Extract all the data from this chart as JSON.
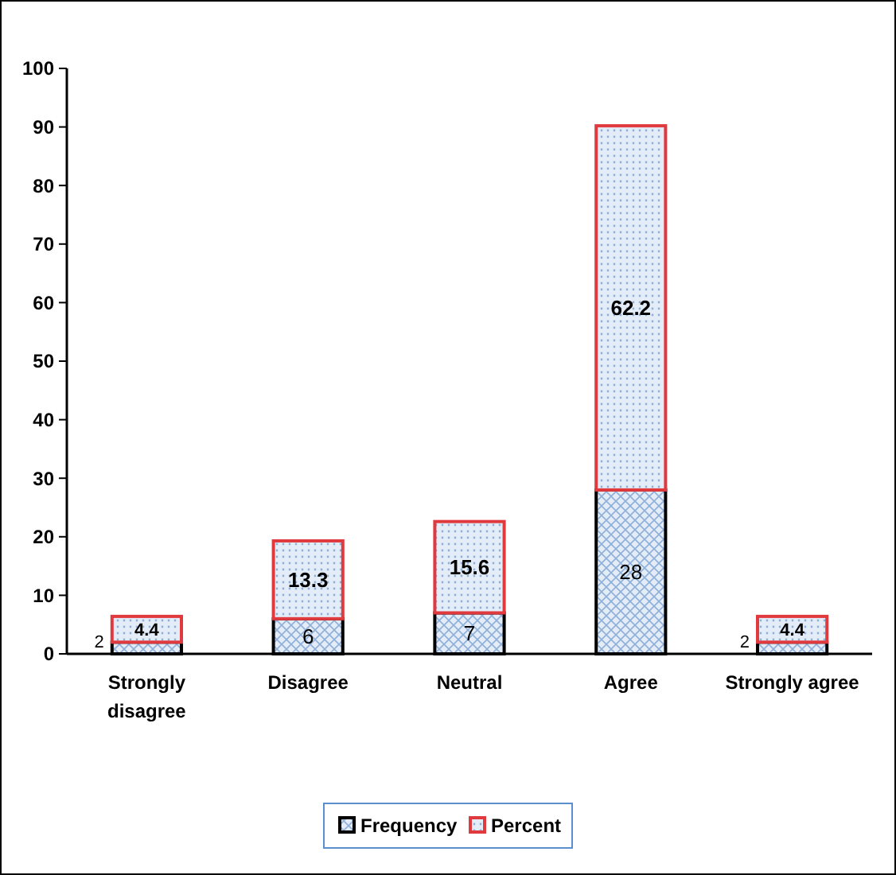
{
  "chart_data": {
    "type": "bar",
    "stacked": true,
    "categories": [
      "Strongly disagree",
      "Disagree",
      "Neutral",
      "Agree",
      "Strongly agree"
    ],
    "series": [
      {
        "name": "Frequency",
        "color": "#000000",
        "values": [
          2,
          6,
          7,
          28,
          2
        ]
      },
      {
        "name": "Percent",
        "color": "#e0393e",
        "values": [
          4.4,
          13.3,
          15.6,
          62.2,
          4.4
        ]
      }
    ],
    "ylim": [
      0,
      100
    ],
    "yticks": [
      0,
      10,
      20,
      30,
      40,
      50,
      60,
      70,
      80,
      90,
      100
    ],
    "grid": false,
    "legend": "bottom",
    "data_labels": true
  }
}
